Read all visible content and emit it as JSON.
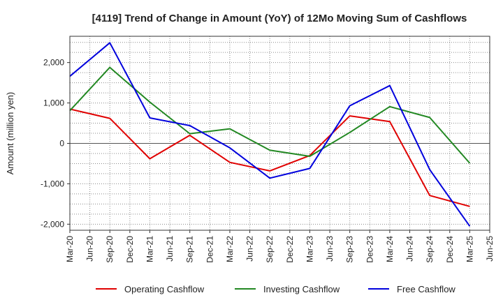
{
  "chart_data": {
    "type": "line",
    "title": "[4119]  Trend of Change in Amount (YoY) of 12Mo Moving Sum of Cashflows",
    "xlabel": "",
    "ylabel": "Amount (million yen)",
    "ylim": [
      -2150,
      2650
    ],
    "y_ticks": [
      2000,
      1000,
      0,
      -1000,
      -2000
    ],
    "y_tick_labels": [
      "2,000",
      "1,000",
      "0",
      "-1,000",
      "-2,000"
    ],
    "categories": [
      "Mar-20",
      "Jun-20",
      "Sep-20",
      "Dec-20",
      "Mar-21",
      "Jun-21",
      "Sep-21",
      "Dec-21",
      "Mar-22",
      "Jun-22",
      "Sep-22",
      "Dec-22",
      "Mar-23",
      "Jun-23",
      "Sep-23",
      "Dec-23",
      "Mar-24",
      "Jun-24",
      "Sep-24",
      "Dec-24",
      "Mar-25",
      "Jun-25"
    ],
    "grid": true,
    "legend_position": "bottom",
    "series": [
      {
        "name": "Operating Cashflow",
        "color": "#e00000",
        "points": [
          {
            "x": "Mar-20",
            "y": 850
          },
          {
            "x": "Sep-20",
            "y": 620
          },
          {
            "x": "Mar-21",
            "y": -380
          },
          {
            "x": "Sep-21",
            "y": 200
          },
          {
            "x": "Mar-22",
            "y": -470
          },
          {
            "x": "Sep-22",
            "y": -680
          },
          {
            "x": "Mar-23",
            "y": -300
          },
          {
            "x": "Sep-23",
            "y": 680
          },
          {
            "x": "Mar-24",
            "y": 540
          },
          {
            "x": "Sep-24",
            "y": -1290
          },
          {
            "x": "Mar-25",
            "y": -1560
          }
        ]
      },
      {
        "name": "Investing Cashflow",
        "color": "#228822",
        "points": [
          {
            "x": "Mar-20",
            "y": 810
          },
          {
            "x": "Sep-20",
            "y": 1880
          },
          {
            "x": "Mar-21",
            "y": 1020
          },
          {
            "x": "Sep-21",
            "y": 240
          },
          {
            "x": "Mar-22",
            "y": 360
          },
          {
            "x": "Sep-22",
            "y": -170
          },
          {
            "x": "Mar-23",
            "y": -320
          },
          {
            "x": "Sep-23",
            "y": 270
          },
          {
            "x": "Mar-24",
            "y": 910
          },
          {
            "x": "Sep-24",
            "y": 640
          },
          {
            "x": "Mar-25",
            "y": -490
          }
        ]
      },
      {
        "name": "Free Cashflow",
        "color": "#0000dd",
        "points": [
          {
            "x": "Mar-20",
            "y": 1660
          },
          {
            "x": "Sep-20",
            "y": 2490
          },
          {
            "x": "Mar-21",
            "y": 630
          },
          {
            "x": "Sep-21",
            "y": 440
          },
          {
            "x": "Mar-22",
            "y": -110
          },
          {
            "x": "Sep-22",
            "y": -860
          },
          {
            "x": "Mar-23",
            "y": -620
          },
          {
            "x": "Sep-23",
            "y": 930
          },
          {
            "x": "Mar-24",
            "y": 1430
          },
          {
            "x": "Sep-24",
            "y": -650
          },
          {
            "x": "Mar-25",
            "y": -2050
          }
        ]
      }
    ]
  }
}
